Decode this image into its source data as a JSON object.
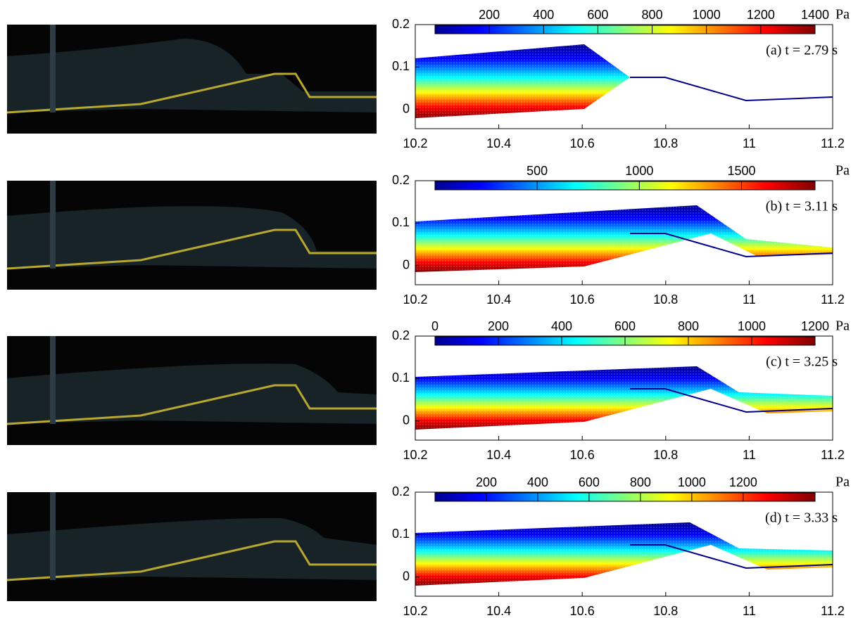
{
  "panels": [
    {
      "label": "(a) t = 2.79 s",
      "colorbar": {
        "unit": "Pa",
        "clim": [
          0,
          1400
        ],
        "ticks": [
          200,
          400,
          600,
          800,
          1000,
          1200,
          1400
        ]
      },
      "xlim": [
        10.2,
        11.2
      ],
      "xticks": [
        10.2,
        10.4,
        10.6,
        10.8,
        11,
        11.2
      ],
      "ylim": [
        -0.045,
        0.2
      ],
      "yticks": [
        0,
        0.1,
        0.2
      ]
    },
    {
      "label": "(b) t = 3.11 s",
      "colorbar": {
        "unit": "Pa",
        "clim": [
          0,
          1860
        ],
        "ticks": [
          500,
          1000,
          1500
        ]
      },
      "xlim": [
        10.2,
        11.2
      ],
      "xticks": [
        10.2,
        10.4,
        10.6,
        10.8,
        11,
        11.2
      ],
      "ylim": [
        -0.045,
        0.2
      ],
      "yticks": [
        0,
        0.1,
        0.2
      ]
    },
    {
      "label": "(c) t = 3.25 s",
      "colorbar": {
        "unit": "Pa",
        "clim": [
          0,
          1200
        ],
        "ticks": [
          0,
          200,
          400,
          600,
          800,
          1000,
          1200
        ]
      },
      "xlim": [
        10.2,
        11.2
      ],
      "xticks": [
        10.2,
        10.4,
        10.6,
        10.8,
        11,
        11.2
      ],
      "ylim": [
        -0.045,
        0.2
      ],
      "yticks": [
        0,
        0.1,
        0.2
      ]
    },
    {
      "label": "(d) t = 3.33 s",
      "colorbar": {
        "unit": "Pa",
        "clim": [
          0,
          1480
        ],
        "ticks": [
          200,
          400,
          600,
          800,
          1000,
          1200
        ]
      },
      "xlim": [
        10.2,
        11.2
      ],
      "xticks": [
        10.2,
        10.4,
        10.6,
        10.8,
        11,
        11.2
      ],
      "ylim": [
        -0.045,
        0.2
      ],
      "yticks": [
        0,
        0.1,
        0.2
      ]
    }
  ]
}
